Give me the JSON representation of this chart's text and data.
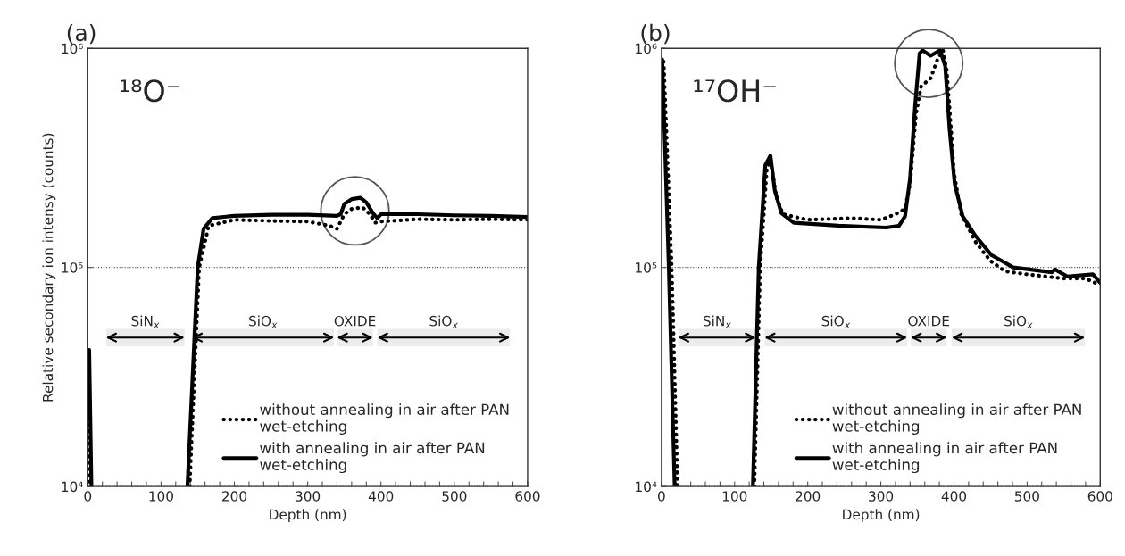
{
  "chart_data": [
    {
      "type": "line",
      "title": "(a)",
      "xlabel": "Depth (nm)",
      "ylabel": "Relative secondary ion intensy (counts)",
      "log": "y",
      "grid": "y",
      "legend": "bottom right",
      "xlim": [
        0,
        600
      ],
      "ylim": [
        10000,
        1000000
      ],
      "xticks": [
        0,
        {
          "value": 20,
          "label": null
        },
        {
          "value": 40,
          "label": null
        },
        {
          "value": 60,
          "label": null
        },
        {
          "value": 80,
          "label": null
        },
        100,
        {
          "value": 120,
          "label": null
        },
        {
          "value": 140,
          "label": null
        },
        {
          "value": 160,
          "label": null
        },
        {
          "value": 180,
          "label": null
        },
        200,
        {
          "value": 220,
          "label": null
        },
        {
          "value": 240,
          "label": null
        },
        {
          "value": 260,
          "label": null
        },
        {
          "value": 280,
          "label": null
        },
        300,
        {
          "value": 320,
          "label": null
        },
        {
          "value": 340,
          "label": null
        },
        {
          "value": 360,
          "label": null
        },
        {
          "value": 380,
          "label": null
        },
        400,
        {
          "value": 420,
          "label": null
        },
        {
          "value": 440,
          "label": null
        },
        {
          "value": 460,
          "label": null
        },
        {
          "value": 480,
          "label": null
        },
        500,
        {
          "value": 520,
          "label": null
        },
        {
          "value": 540,
          "label": null
        },
        {
          "value": 560,
          "label": null
        },
        {
          "value": 580,
          "label": null
        },
        600
      ],
      "yticks": [
        {
          "value": 10000,
          "label": "10⁴"
        },
        {
          "value": 100000,
          "label": "10⁵"
        },
        {
          "value": 1000000,
          "label": "10⁶"
        }
      ],
      "annotations": [
        "¹⁸O⁻"
      ],
      "bands": [
        {
          "axis": "x",
          "from": 25,
          "to": 132,
          "label": "SiN$_{x}$"
        },
        {
          "axis": "x",
          "from": 142,
          "to": 336,
          "label": "SiO$_{x}$"
        },
        {
          "axis": "x",
          "from": 340,
          "to": 389,
          "label": "OXIDE"
        },
        {
          "axis": "x",
          "from": 395,
          "to": 576,
          "label": "SiO$_{x}$"
        }
      ],
      "series": [
        {
          "name": "without annealing in air after PAN\nwet-etching",
          "color": "#000000",
          "line_style": "dotted",
          "x": [
            1,
            3,
            5,
            139,
            152,
            165,
            200,
            250,
            300,
            330,
            340,
            350,
            360,
            375,
            385,
            392,
            400,
            450,
            500,
            550,
            600
          ],
          "values": [
            25000,
            10000,
            null,
            10000,
            100000,
            155000,
            165000,
            163000,
            162000,
            155000,
            150000,
            175000,
            185000,
            188000,
            175000,
            160000,
            162000,
            166000,
            165000,
            166000,
            165000
          ]
        },
        {
          "name": "with annealing in air after PAN\nwet-etching",
          "color": "#000000",
          "line_style": "solid",
          "x": [
            0,
            2,
            5,
            100,
            136,
            150,
            158,
            170,
            200,
            250,
            300,
            340,
            345,
            350,
            360,
            372,
            380,
            390,
            395,
            400,
            450,
            500,
            550,
            600
          ],
          "values": [
            42000,
            42000,
            10000,
            null,
            10000,
            100000,
            150000,
            168000,
            172000,
            174000,
            174000,
            172000,
            175000,
            195000,
            205000,
            208000,
            198000,
            175000,
            168000,
            175000,
            175000,
            173000,
            172000,
            170000
          ]
        }
      ]
    },
    {
      "type": "line",
      "title": "(b)",
      "xlabel": "Depth (nm)",
      "log": "y",
      "grid": "y",
      "legend": "bottom right",
      "xlim": [
        0,
        600
      ],
      "ylim": [
        10000,
        1000000
      ],
      "xticks": [
        0,
        {
          "value": 20,
          "label": null
        },
        {
          "value": 40,
          "label": null
        },
        {
          "value": 60,
          "label": null
        },
        {
          "value": 80,
          "label": null
        },
        100,
        {
          "value": 120,
          "label": null
        },
        {
          "value": 140,
          "label": null
        },
        {
          "value": 160,
          "label": null
        },
        {
          "value": 180,
          "label": null
        },
        200,
        {
          "value": 220,
          "label": null
        },
        {
          "value": 240,
          "label": null
        },
        {
          "value": 260,
          "label": null
        },
        {
          "value": 280,
          "label": null
        },
        300,
        {
          "value": 320,
          "label": null
        },
        {
          "value": 340,
          "label": null
        },
        {
          "value": 360,
          "label": null
        },
        {
          "value": 380,
          "label": null
        },
        400,
        {
          "value": 420,
          "label": null
        },
        {
          "value": 440,
          "label": null
        },
        {
          "value": 460,
          "label": null
        },
        {
          "value": 480,
          "label": null
        },
        500,
        {
          "value": 520,
          "label": null
        },
        {
          "value": 540,
          "label": null
        },
        {
          "value": 560,
          "label": null
        },
        {
          "value": 580,
          "label": null
        },
        600
      ],
      "yticks": [
        {
          "value": 10000,
          "label": "10⁴"
        },
        {
          "value": 100000,
          "label": "10⁵"
        },
        {
          "value": 1000000,
          "label": "10⁶"
        }
      ],
      "annotations": [
        "¹⁷OH⁻"
      ],
      "bands": [
        {
          "axis": "x",
          "from": 23,
          "to": 129,
          "label": "SiN$_{x}$"
        },
        {
          "axis": "x",
          "from": 141,
          "to": 336,
          "label": "SiO$_{x}$"
        },
        {
          "axis": "x",
          "from": 341,
          "to": 390,
          "label": "OXIDE"
        },
        {
          "axis": "x",
          "from": 397,
          "to": 579,
          "label": "SiO$_{x}$"
        }
      ],
      "series": [
        {
          "name": "without annealing in air after PAN\nwet-etching",
          "color": "#000000",
          "line_style": "dotted",
          "x": [
            3,
            14,
            22,
            70,
            127,
            135,
            144,
            149,
            157,
            166,
            200,
            260,
            300,
            320,
            333,
            340,
            348,
            355,
            368,
            378,
            385,
            390,
            395,
            400,
            410,
            430,
            450,
            470,
            500,
            550,
            580,
            600
          ],
          "values": [
            870000,
            100000,
            10000,
            null,
            10000,
            100000,
            280000,
            310000,
            210000,
            175000,
            165000,
            168000,
            165000,
            175000,
            185000,
            240000,
            500000,
            670000,
            730000,
            900000,
            980000,
            800000,
            480000,
            270000,
            175000,
            130000,
            107000,
            96000,
            93000,
            89000,
            89000,
            83000
          ]
        },
        {
          "name": "with annealing in air after PAN\nwet-etching",
          "color": "#000000",
          "line_style": "solid",
          "x": [
            1,
            10,
            18,
            70,
            125,
            133,
            142,
            149,
            155,
            164,
            181,
            242,
            307,
            325,
            333,
            340,
            347,
            353,
            357,
            368,
            381,
            388,
            394,
            401,
            412,
            429,
            451,
            481,
            503,
            534,
            538,
            555,
            590,
            600
          ],
          "values": [
            890000,
            100000,
            10000,
            null,
            10000,
            100000,
            293000,
            324000,
            224000,
            177000,
            160000,
            155000,
            152000,
            155000,
            171000,
            256000,
            556000,
            950000,
            980000,
            925000,
            980000,
            830000,
            425000,
            240000,
            171000,
            140000,
            114000,
            100000,
            98000,
            95000,
            98000,
            91000,
            93000,
            85000
          ]
        }
      ]
    }
  ]
}
